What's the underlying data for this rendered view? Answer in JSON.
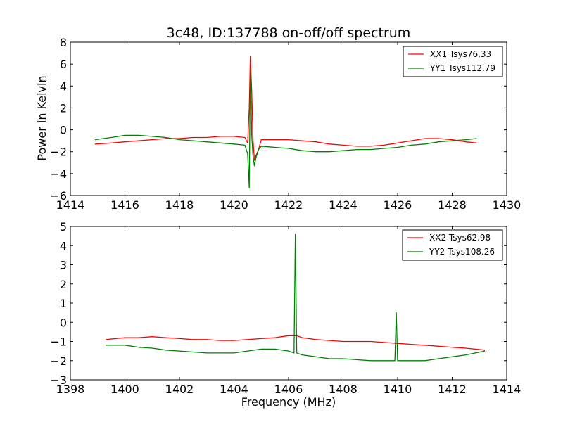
{
  "chart_data": [
    {
      "type": "line",
      "title": "3c48, ID:137788 on-off/off spectrum",
      "xlabel": "",
      "ylabel": "Power in Kelvin",
      "xlim": [
        1414,
        1430
      ],
      "ylim": [
        -6,
        8
      ],
      "xticks": [
        "1414",
        "1416",
        "1418",
        "1420",
        "1422",
        "1424",
        "1426",
        "1428",
        "1430"
      ],
      "yticks": [
        "−6",
        "−4",
        "−2",
        "0",
        "2",
        "4",
        "6",
        "8"
      ],
      "legend_position": "top-right",
      "grid": false,
      "series": [
        {
          "name": "XX1 Tsys76.33",
          "color": "#ff0000",
          "x": [
            1414.9,
            1415.5,
            1416.0,
            1416.5,
            1417.0,
            1417.5,
            1418.0,
            1418.5,
            1419.0,
            1419.5,
            1420.0,
            1420.4,
            1420.5,
            1420.56,
            1420.6,
            1420.65,
            1420.7,
            1420.75,
            1420.8,
            1420.9,
            1421.0,
            1421.5,
            1422.0,
            1422.5,
            1423.0,
            1423.5,
            1424.0,
            1424.5,
            1425.0,
            1425.5,
            1426.0,
            1426.5,
            1427.0,
            1427.5,
            1428.0,
            1428.5,
            1428.9
          ],
          "y": [
            -1.3,
            -1.2,
            -1.1,
            -1.0,
            -0.9,
            -0.8,
            -0.8,
            -0.7,
            -0.7,
            -0.6,
            -0.6,
            -0.7,
            -1.2,
            2.0,
            6.7,
            3.5,
            -1.0,
            -2.8,
            -2.4,
            -1.8,
            -0.9,
            -0.9,
            -0.9,
            -1.0,
            -1.1,
            -1.3,
            -1.4,
            -1.5,
            -1.5,
            -1.4,
            -1.2,
            -1.0,
            -0.8,
            -0.8,
            -0.9,
            -1.1,
            -1.2
          ]
        },
        {
          "name": "YY1 Tsys112.79",
          "color": "#008000",
          "x": [
            1414.9,
            1415.5,
            1416.0,
            1416.5,
            1417.0,
            1417.5,
            1418.0,
            1418.5,
            1419.0,
            1419.5,
            1420.0,
            1420.4,
            1420.5,
            1420.56,
            1420.6,
            1420.65,
            1420.7,
            1420.75,
            1420.8,
            1420.9,
            1421.0,
            1421.5,
            1422.0,
            1422.5,
            1423.0,
            1423.5,
            1424.0,
            1424.5,
            1425.0,
            1425.5,
            1426.0,
            1426.5,
            1427.0,
            1427.5,
            1428.0,
            1428.5,
            1428.9
          ],
          "y": [
            -0.9,
            -0.7,
            -0.5,
            -0.5,
            -0.6,
            -0.7,
            -0.9,
            -1.0,
            -1.1,
            -1.2,
            -1.3,
            -1.4,
            -2.2,
            -5.3,
            5.5,
            -0.5,
            -2.5,
            -3.3,
            -2.6,
            -1.8,
            -1.5,
            -1.6,
            -1.7,
            -1.9,
            -2.0,
            -2.0,
            -1.9,
            -1.8,
            -1.8,
            -1.7,
            -1.6,
            -1.4,
            -1.3,
            -1.1,
            -1.0,
            -0.9,
            -0.8
          ]
        }
      ]
    },
    {
      "type": "line",
      "title": "",
      "xlabel": "Frequency (MHz)",
      "ylabel": "",
      "xlim": [
        1398,
        1414
      ],
      "ylim": [
        -3,
        5
      ],
      "xticks": [
        "1398",
        "1400",
        "1402",
        "1404",
        "1406",
        "1408",
        "1410",
        "1412",
        "1414"
      ],
      "yticks": [
        "−3",
        "−2",
        "−1",
        "0",
        "1",
        "2",
        "3",
        "4",
        "5"
      ],
      "legend_position": "top-right",
      "grid": false,
      "series": [
        {
          "name": "XX2 Tsys62.98",
          "color": "#ff0000",
          "x": [
            1399.3,
            1400.0,
            1400.5,
            1401.0,
            1401.5,
            1402.0,
            1402.5,
            1403.0,
            1403.5,
            1404.0,
            1404.5,
            1405.0,
            1405.5,
            1406.0,
            1406.3,
            1406.5,
            1407.0,
            1407.5,
            1408.0,
            1408.5,
            1409.0,
            1409.5,
            1410.0,
            1410.5,
            1411.0,
            1411.5,
            1412.0,
            1412.5,
            1413.2
          ],
          "y": [
            -0.9,
            -0.8,
            -0.8,
            -0.75,
            -0.8,
            -0.85,
            -0.9,
            -0.9,
            -0.95,
            -0.95,
            -0.9,
            -0.85,
            -0.8,
            -0.7,
            -0.7,
            -0.8,
            -0.9,
            -0.95,
            -1.0,
            -1.0,
            -1.0,
            -1.05,
            -1.1,
            -1.15,
            -1.2,
            -1.25,
            -1.3,
            -1.35,
            -1.45
          ]
        },
        {
          "name": "YY2 Tsys108.26",
          "color": "#008000",
          "x": [
            1399.3,
            1400.0,
            1400.5,
            1401.0,
            1401.5,
            1402.0,
            1402.5,
            1403.0,
            1403.5,
            1404.0,
            1404.5,
            1405.0,
            1405.5,
            1406.0,
            1406.2,
            1406.25,
            1406.3,
            1406.5,
            1407.0,
            1407.5,
            1408.0,
            1408.5,
            1409.0,
            1409.5,
            1409.9,
            1409.95,
            1410.0,
            1410.5,
            1411.0,
            1411.5,
            1412.0,
            1412.5,
            1413.2
          ],
          "y": [
            -1.2,
            -1.2,
            -1.3,
            -1.35,
            -1.45,
            -1.5,
            -1.55,
            -1.6,
            -1.6,
            -1.6,
            -1.5,
            -1.4,
            -1.4,
            -1.5,
            -1.6,
            4.6,
            -1.6,
            -1.7,
            -1.8,
            -1.9,
            -1.9,
            -1.95,
            -2.0,
            -2.0,
            -2.0,
            0.5,
            -2.0,
            -2.0,
            -2.0,
            -1.9,
            -1.8,
            -1.7,
            -1.5
          ]
        }
      ]
    }
  ]
}
